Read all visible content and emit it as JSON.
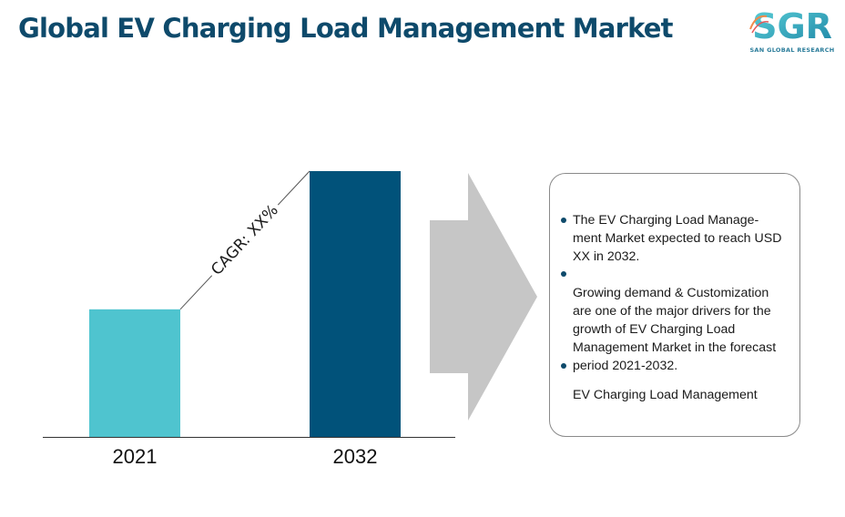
{
  "title": "Global EV Charging Load Management Market",
  "logo": {
    "mark": "SGR",
    "subtitle": "SAN GLOBAL RESEARCH",
    "icon": "sgr-logo-icon"
  },
  "colors": {
    "title": "#0e4a6b",
    "bar_2021": "#4fc4cf",
    "bar_2032": "#01527a",
    "arrow": "#c6c6c6",
    "bullet": "#0e4a6b"
  },
  "chart_data": {
    "type": "bar",
    "categories": [
      "2021",
      "2032"
    ],
    "values": [
      48,
      100
    ],
    "value_note": "relative bar heights (actual values not printed)",
    "annotation": "CAGR: XX%",
    "title": "",
    "xlabel": "",
    "ylabel": "",
    "grid": false
  },
  "info": {
    "line1a": "The EV Charging Load Manage-",
    "line1b": "ment Market expected to reach USD",
    "line1c": "XX in 2032.",
    "line2a": "Growing demand & Customization",
    "line2b": "are one of the major drivers for the",
    "line2c": "growth of EV Charging Load",
    "line2d": "Management Market in the forecast",
    "line2e": "period 2021-2032.",
    "line3": "EV Charging Load Management"
  }
}
